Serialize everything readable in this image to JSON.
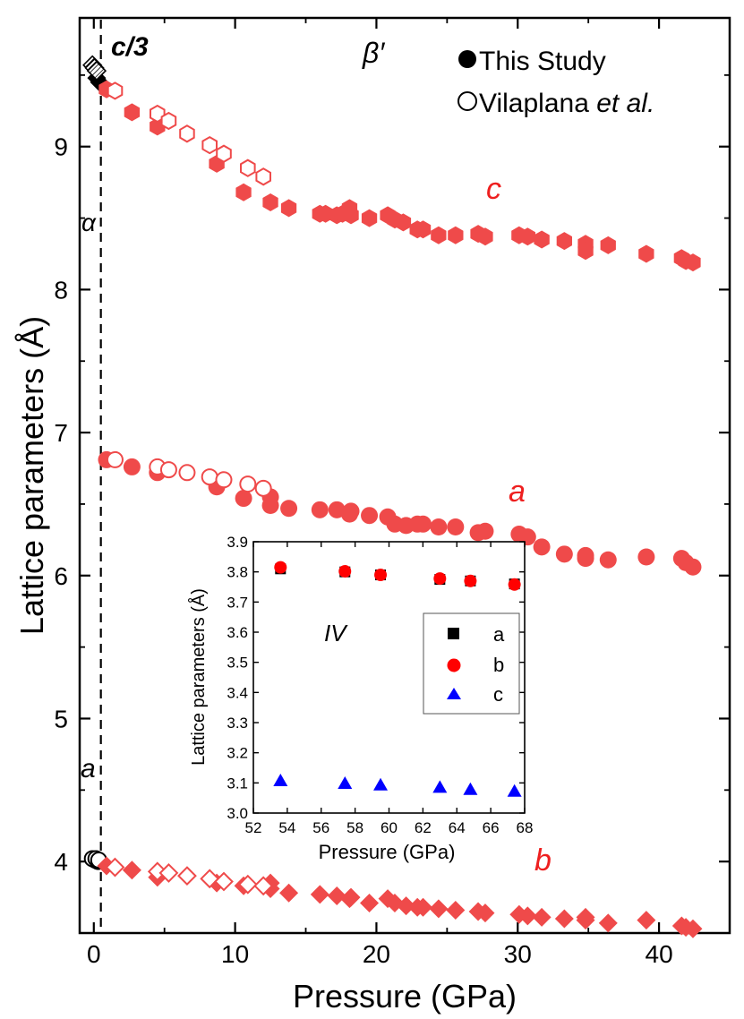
{
  "chart_data": [
    {
      "type": "scatter",
      "xlabel": "Pressure (GPa)",
      "ylabel": "Lattice parameters (Å)",
      "xlim": [
        -1,
        45
      ],
      "ylim": [
        3.5,
        9.9
      ],
      "xticks": [
        0,
        10,
        20,
        30,
        40
      ],
      "yticks": [
        4,
        5,
        6,
        7,
        8,
        9
      ],
      "transition_pressure": 0.5,
      "legend": {
        "position": "top-right",
        "entries": [
          {
            "label": "This Study",
            "marker": "filled-circle"
          },
          {
            "label_prefix": "Vilaplana ",
            "label_italic": "et al.",
            "marker": "open-circle"
          }
        ]
      },
      "annotations": {
        "c3": "c/3",
        "beta_prime": "β′",
        "alpha": "α",
        "a_low": "a",
        "c": "c",
        "a": "a",
        "b": "b"
      },
      "series": [
        {
          "name": "alpha a (This Study)",
          "marker": "circle-filled",
          "color": "#000000",
          "points": [
            [
              0.1,
              4.01
            ],
            [
              0.3,
              4.0
            ]
          ]
        },
        {
          "name": "alpha a (Vilaplana et al.)",
          "marker": "circle-open",
          "color": "#000000",
          "points": [
            [
              -0.1,
              4.02
            ],
            [
              0.15,
              4.02
            ],
            [
              0.35,
              4.01
            ]
          ]
        },
        {
          "name": "alpha c/3 (This Study)",
          "marker": "diamond-filled",
          "color": "#000000",
          "points": [
            [
              0.2,
              9.48
            ],
            [
              0.4,
              9.45
            ]
          ]
        },
        {
          "name": "alpha c/3 (Vilaplana et al.)",
          "marker": "diamond-hatched",
          "color": "#000000",
          "points": [
            [
              -0.1,
              9.57
            ],
            [
              0.05,
              9.55
            ],
            [
              0.2,
              9.53
            ]
          ]
        },
        {
          "name": "c (This Study)",
          "marker": "hexagon-filled",
          "color": "#ef4a4a",
          "points": [
            [
              0.9,
              9.4
            ],
            [
              2.7,
              9.24
            ],
            [
              4.5,
              9.14
            ],
            [
              8.7,
              8.88
            ],
            [
              10.6,
              8.68
            ],
            [
              12.5,
              8.61
            ],
            [
              13.8,
              8.57
            ],
            [
              16.0,
              8.53
            ],
            [
              16.4,
              8.53
            ],
            [
              17.2,
              8.52
            ],
            [
              17.6,
              8.53
            ],
            [
              18.1,
              8.57
            ],
            [
              18.2,
              8.52
            ],
            [
              19.5,
              8.5
            ],
            [
              20.8,
              8.52
            ],
            [
              21.3,
              8.49
            ],
            [
              21.9,
              8.47
            ],
            [
              22.9,
              8.42
            ],
            [
              23.3,
              8.42
            ],
            [
              24.4,
              8.38
            ],
            [
              25.6,
              8.38
            ],
            [
              27.2,
              8.39
            ],
            [
              27.7,
              8.37
            ],
            [
              30.1,
              8.38
            ],
            [
              30.7,
              8.37
            ],
            [
              31.7,
              8.35
            ],
            [
              33.3,
              8.34
            ],
            [
              34.8,
              8.32
            ],
            [
              34.8,
              8.27
            ],
            [
              36.4,
              8.31
            ],
            [
              39.1,
              8.25
            ],
            [
              41.6,
              8.22
            ],
            [
              41.9,
              8.2
            ],
            [
              42.4,
              8.19
            ]
          ]
        },
        {
          "name": "c (Vilaplana et al.)",
          "marker": "hexagon-open",
          "color": "#ef4a4a",
          "points": [
            [
              1.5,
              9.39
            ],
            [
              4.5,
              9.23
            ],
            [
              5.3,
              9.18
            ],
            [
              6.6,
              9.09
            ],
            [
              8.2,
              9.01
            ],
            [
              9.2,
              8.95
            ],
            [
              10.9,
              8.85
            ],
            [
              12.0,
              8.79
            ]
          ]
        },
        {
          "name": "a (This Study)",
          "marker": "circle-filled",
          "color": "#ef4a4a",
          "points": [
            [
              0.9,
              6.81
            ],
            [
              2.7,
              6.76
            ],
            [
              4.5,
              6.72
            ],
            [
              8.7,
              6.62
            ],
            [
              10.6,
              6.54
            ],
            [
              12.5,
              6.49
            ],
            [
              12.5,
              6.55
            ],
            [
              13.8,
              6.47
            ],
            [
              16.0,
              6.46
            ],
            [
              17.2,
              6.46
            ],
            [
              18.1,
              6.43
            ],
            [
              18.2,
              6.45
            ],
            [
              19.5,
              6.42
            ],
            [
              20.8,
              6.41
            ],
            [
              21.3,
              6.36
            ],
            [
              22.1,
              6.35
            ],
            [
              22.9,
              6.36
            ],
            [
              23.3,
              6.36
            ],
            [
              24.4,
              6.34
            ],
            [
              25.6,
              6.34
            ],
            [
              27.2,
              6.3
            ],
            [
              27.7,
              6.31
            ],
            [
              30.1,
              6.29
            ],
            [
              30.7,
              6.27
            ],
            [
              31.7,
              6.2
            ],
            [
              33.3,
              6.15
            ],
            [
              34.8,
              6.12
            ],
            [
              34.8,
              6.14
            ],
            [
              36.4,
              6.11
            ],
            [
              39.1,
              6.13
            ],
            [
              41.6,
              6.12
            ],
            [
              41.9,
              6.09
            ],
            [
              42.4,
              6.06
            ]
          ]
        },
        {
          "name": "a (Vilaplana et al.)",
          "marker": "circle-open",
          "color": "#ef4a4a",
          "points": [
            [
              1.5,
              6.81
            ],
            [
              4.5,
              6.76
            ],
            [
              5.3,
              6.74
            ],
            [
              6.6,
              6.72
            ],
            [
              8.2,
              6.69
            ],
            [
              9.2,
              6.67
            ],
            [
              10.9,
              6.64
            ],
            [
              12.0,
              6.61
            ]
          ]
        },
        {
          "name": "b (This Study)",
          "marker": "diamond-filled",
          "color": "#ef4a4a",
          "points": [
            [
              0.9,
              3.97
            ],
            [
              2.7,
              3.94
            ],
            [
              4.5,
              3.89
            ],
            [
              8.7,
              3.85
            ],
            [
              10.6,
              3.83
            ],
            [
              12.5,
              3.81
            ],
            [
              12.5,
              3.85
            ],
            [
              13.8,
              3.78
            ],
            [
              16.0,
              3.77
            ],
            [
              17.2,
              3.76
            ],
            [
              18.1,
              3.74
            ],
            [
              18.2,
              3.75
            ],
            [
              19.5,
              3.71
            ],
            [
              20.8,
              3.74
            ],
            [
              21.3,
              3.71
            ],
            [
              22.1,
              3.69
            ],
            [
              22.9,
              3.68
            ],
            [
              23.3,
              3.68
            ],
            [
              24.4,
              3.67
            ],
            [
              25.6,
              3.66
            ],
            [
              27.2,
              3.65
            ],
            [
              27.7,
              3.64
            ],
            [
              30.1,
              3.63
            ],
            [
              30.7,
              3.62
            ],
            [
              31.7,
              3.61
            ],
            [
              33.3,
              3.6
            ],
            [
              34.8,
              3.59
            ],
            [
              34.8,
              3.61
            ],
            [
              36.4,
              3.57
            ],
            [
              39.1,
              3.59
            ],
            [
              41.6,
              3.55
            ],
            [
              41.9,
              3.54
            ],
            [
              42.4,
              3.53
            ]
          ]
        },
        {
          "name": "b (Vilaplana et al.)",
          "marker": "diamond-open",
          "color": "#ef4a4a",
          "points": [
            [
              1.5,
              3.96
            ],
            [
              4.5,
              3.93
            ],
            [
              5.3,
              3.92
            ],
            [
              6.6,
              3.9
            ],
            [
              8.2,
              3.88
            ],
            [
              9.2,
              3.86
            ],
            [
              10.9,
              3.84
            ],
            [
              12.0,
              3.83
            ]
          ]
        }
      ]
    },
    {
      "type": "scatter",
      "inset": true,
      "xlabel": "Pressure (GPa)",
      "ylabel": "Lattice parameters (Å)",
      "xlim": [
        52,
        68
      ],
      "ylim": [
        3.0,
        3.9
      ],
      "xticks": [
        52,
        54,
        56,
        58,
        60,
        62,
        64,
        66,
        68
      ],
      "yticks": [
        3.0,
        3.1,
        3.2,
        3.3,
        3.4,
        3.5,
        3.6,
        3.7,
        3.8,
        3.9
      ],
      "label": "IV",
      "legend": {
        "position": "right",
        "entries": [
          {
            "label": "a",
            "marker": "square",
            "color": "#000000"
          },
          {
            "label": "b",
            "marker": "circle",
            "color": "#ff0000"
          },
          {
            "label": "c",
            "marker": "triangle",
            "color": "#0000ff"
          }
        ]
      },
      "series": [
        {
          "name": "a",
          "marker": "square",
          "color": "#000000",
          "points": [
            [
              53.6,
              3.81
            ],
            [
              57.4,
              3.8
            ],
            [
              59.5,
              3.79
            ],
            [
              63.0,
              3.775
            ],
            [
              64.8,
              3.77
            ],
            [
              67.4,
              3.76
            ]
          ]
        },
        {
          "name": "b",
          "marker": "circle",
          "color": "#ff0000",
          "points": [
            [
              53.6,
              3.815
            ],
            [
              57.4,
              3.802
            ],
            [
              59.5,
              3.79
            ],
            [
              63.0,
              3.778
            ],
            [
              64.8,
              3.77
            ],
            [
              67.4,
              3.758
            ]
          ]
        },
        {
          "name": "c",
          "marker": "triangle",
          "color": "#0000ff",
          "points": [
            [
              53.6,
              3.107
            ],
            [
              57.4,
              3.098
            ],
            [
              59.5,
              3.093
            ],
            [
              63.0,
              3.085
            ],
            [
              64.8,
              3.078
            ],
            [
              67.4,
              3.072
            ]
          ]
        }
      ]
    }
  ]
}
